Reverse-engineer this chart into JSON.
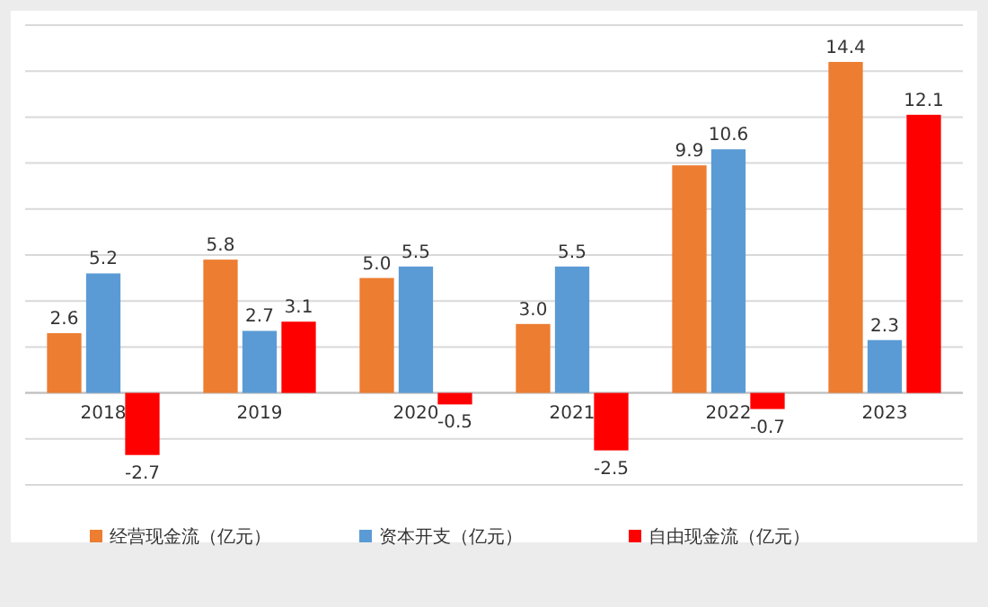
{
  "chart_data": {
    "type": "bar",
    "categories": [
      "2018",
      "2019",
      "2020",
      "2021",
      "2022",
      "2023"
    ],
    "series": [
      {
        "name": "经营现金流（亿元）",
        "color": "#ed7d31",
        "values": [
          2.6,
          5.8,
          5.0,
          3.0,
          9.9,
          14.4
        ],
        "value_labels": [
          "2.6",
          "5.8",
          "5.0",
          "3.0",
          "9.9",
          "14.4"
        ]
      },
      {
        "name": "资本开支（亿元）",
        "color": "#5b9bd5",
        "values": [
          5.2,
          2.7,
          5.5,
          5.5,
          10.6,
          2.3
        ],
        "value_labels": [
          "5.2",
          "2.7",
          "5.5",
          "5.5",
          "10.6",
          "2.3"
        ]
      },
      {
        "name": "自由现金流（亿元）",
        "color": "#ff0000",
        "values": [
          -2.7,
          3.1,
          -0.5,
          -2.5,
          -0.7,
          12.1
        ],
        "value_labels": [
          "-2.7",
          "3.1",
          "-0.5",
          "-2.5",
          "-0.7",
          "12.1"
        ]
      }
    ],
    "ylim": [
      -4,
      16
    ],
    "yticks": [
      {
        "value": -4,
        "label": null
      },
      {
        "value": -2,
        "label": null
      },
      {
        "value": 0,
        "label": null
      },
      {
        "value": 2,
        "label": null
      },
      {
        "value": 4,
        "label": null
      },
      {
        "value": 6,
        "label": null
      },
      {
        "value": 8,
        "label": null
      },
      {
        "value": 10,
        "label": null
      },
      {
        "value": 12,
        "label": null
      },
      {
        "value": 14,
        "label": null
      },
      {
        "value": 16,
        "label": null
      }
    ],
    "tick_labels": "x",
    "grid": "y",
    "legend": "bottom"
  }
}
